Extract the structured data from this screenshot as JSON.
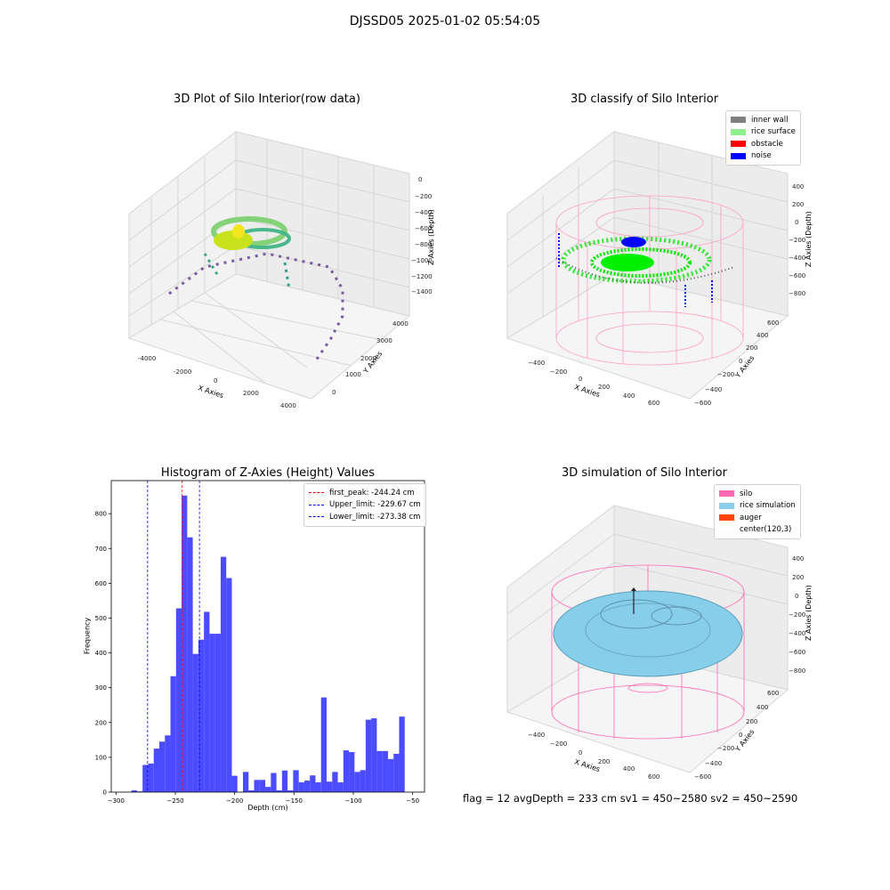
{
  "suptitle": "DJSSD05 2025-01-02 05:54:05",
  "panels": {
    "raw": {
      "title": "3D Plot of Silo Interior(row data)",
      "xlabel": "X Axies",
      "ylabel": "Y Axies",
      "zlabel": "Z Axies (Depth)",
      "x_ticks": [
        "-4000",
        "-2000",
        "0",
        "2000",
        "4000"
      ],
      "y_ticks": [
        "0",
        "1000",
        "2000",
        "3000",
        "4000"
      ],
      "z_ticks": [
        "0",
        "−200",
        "−400",
        "−600",
        "−800",
        "−1000",
        "−1200",
        "−1400"
      ]
    },
    "classify": {
      "title": "3D classify of Silo Interior",
      "xlabel": "X Axies",
      "ylabel": "Y Axies",
      "zlabel": "Z Axies (Depth)",
      "x_ticks": [
        "−400",
        "−200",
        "0",
        "200",
        "400",
        "600"
      ],
      "y_ticks": [
        "−600",
        "−400",
        "−200",
        "0",
        "200",
        "400",
        "600"
      ],
      "z_ticks": [
        "400",
        "200",
        "0",
        "−200",
        "−400",
        "−600",
        "−800"
      ],
      "legend": [
        {
          "label": "inner wall",
          "color": "#808080"
        },
        {
          "label": "rice surface",
          "color": "#90ee90"
        },
        {
          "label": "obstacle",
          "color": "#ff0000"
        },
        {
          "label": "noise",
          "color": "#0000ff"
        }
      ]
    },
    "simulation": {
      "title": "3D simulation of Silo Interior",
      "xlabel": "X Axies",
      "ylabel": "Y Axies",
      "zlabel": "Z Axies (Depth)",
      "x_ticks": [
        "−400",
        "−200",
        "0",
        "200",
        "400",
        "600"
      ],
      "y_ticks": [
        "−600",
        "−400",
        "−200",
        "0",
        "200",
        "400",
        "600"
      ],
      "z_ticks": [
        "400",
        "200",
        "0",
        "−200",
        "−400",
        "−600",
        "−800"
      ],
      "legend": [
        {
          "label": "silo",
          "color": "#ff69b4"
        },
        {
          "label": "rice simulation",
          "color": "#87ceeb"
        },
        {
          "label": "auger",
          "color": "#ff4500"
        },
        {
          "label": "center(120,3)",
          "color": ""
        }
      ]
    }
  },
  "status_line": "flag = 12   avgDepth = 233 cm  sv1 = 450~2580  sv2 = 450~2590",
  "chart_data": {
    "type": "bar",
    "title": "Histogram of Z-Axies (Height) Values",
    "xlabel": "Depth (cm)",
    "ylabel": "Frequency",
    "xlim": [
      -304,
      -40
    ],
    "ylim": [
      0,
      895
    ],
    "x_ticks": [
      -300,
      -250,
      -200,
      -150,
      -100,
      -50
    ],
    "y_ticks": [
      0,
      100,
      200,
      300,
      400,
      500,
      600,
      700,
      800
    ],
    "bin_start": -287,
    "bin_width": 4.7,
    "values": [
      5,
      2,
      78,
      82,
      125,
      145,
      163,
      333,
      528,
      852,
      732,
      397,
      438,
      518,
      455,
      455,
      676,
      615,
      47,
      0,
      58,
      5,
      35,
      35,
      15,
      55,
      5,
      62,
      5,
      63,
      28,
      33,
      48,
      28,
      272,
      30,
      58,
      28,
      120,
      115,
      58,
      63,
      208,
      212,
      118,
      118,
      95,
      110,
      217
    ],
    "lines": [
      {
        "label": "first_peak: -244.24 cm",
        "x": -244.24,
        "color": "#ff0000"
      },
      {
        "label": "Upper_limit: -229.67 cm",
        "x": -229.67,
        "color": "#0000ff"
      },
      {
        "label": "Lower_limit: -273.38 cm",
        "x": -273.38,
        "color": "#0000ff"
      }
    ],
    "bar_color": "#4b4bff"
  }
}
